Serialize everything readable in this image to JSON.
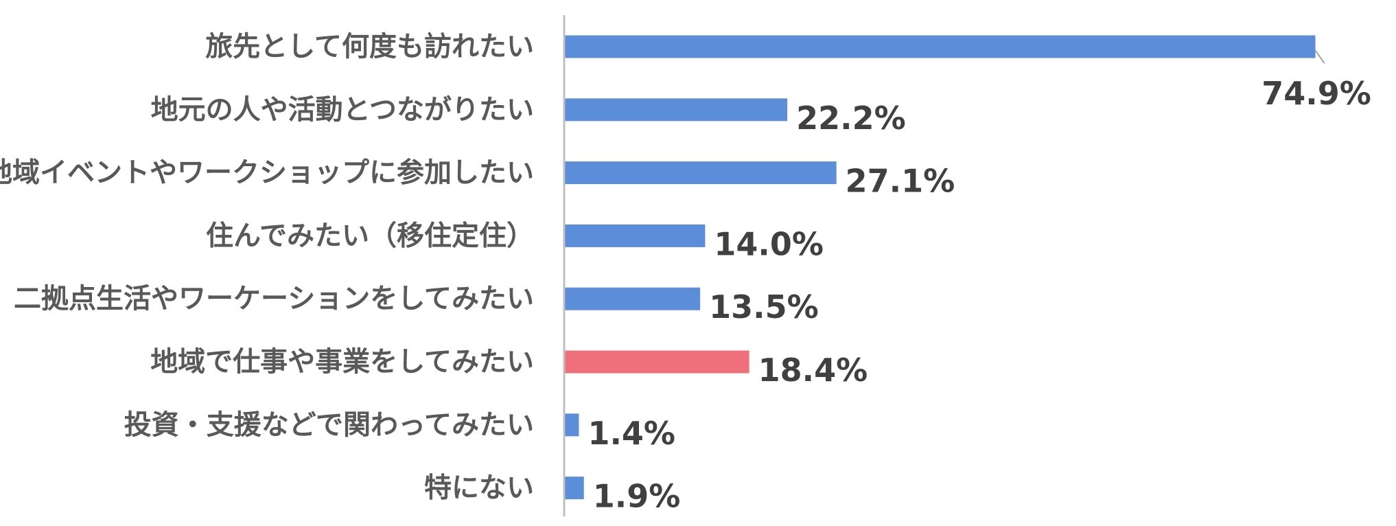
{
  "chart_data": {
    "type": "bar",
    "orientation": "horizontal",
    "categories": [
      "旅先として何度も訪れたい",
      "地元の人や活動とつながりたい",
      "地域イベントやワークショップに参加したい",
      "住んでみたい（移住定住）",
      "二拠点生活やワーケーションをしてみたい",
      "地域で仕事や事業をしてみたい",
      "投資・支援などで関わってみたい",
      "特にない"
    ],
    "values": [
      74.9,
      22.2,
      27.1,
      14.0,
      13.5,
      18.4,
      1.4,
      1.9
    ],
    "value_labels": [
      "74.9%",
      "22.2%",
      "27.1%",
      "14.0%",
      "13.5%",
      "18.4%",
      "1.4%",
      "1.9%"
    ],
    "title": "",
    "xlabel": "",
    "ylabel": "",
    "xlim": [
      0,
      80
    ],
    "grid": false,
    "legend": "none",
    "colors": {
      "default_bar": "#5b8dd9",
      "highlight_bar": "#ef6f7b",
      "axis_line": "#bfbfbf",
      "category_text": "#595959",
      "value_text": "#404040"
    },
    "highlight_index": 5
  }
}
